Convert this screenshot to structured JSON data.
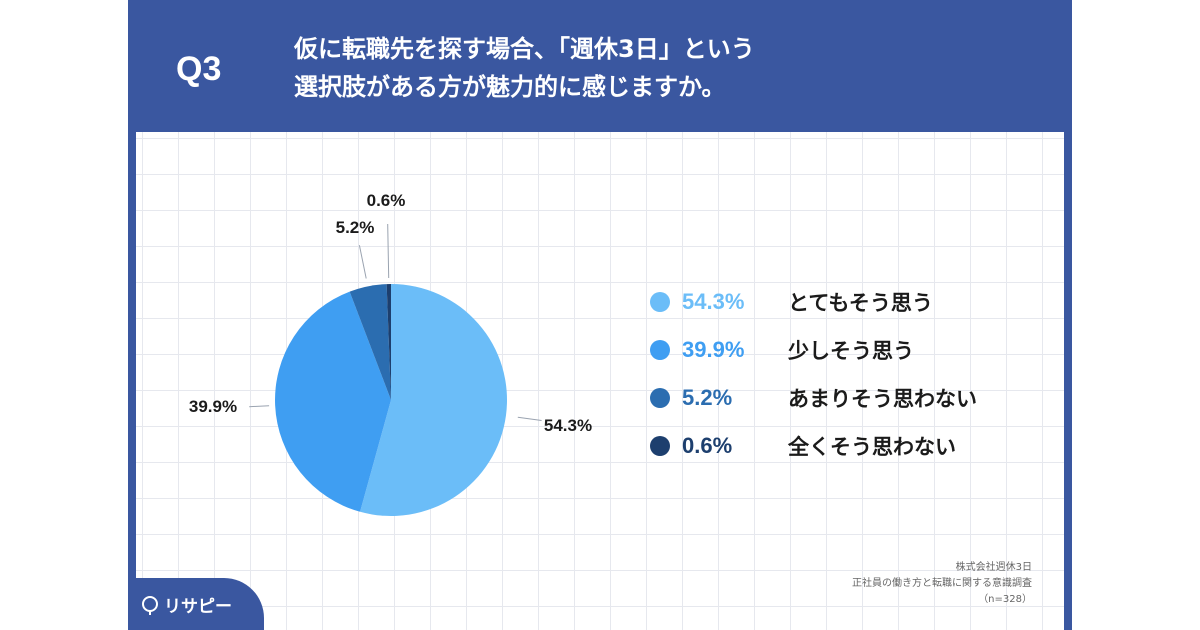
{
  "header": {
    "q_label": "Q3",
    "title_line1": "仮に転職先を探す場合、「週休3日」という",
    "title_line2": "選択肢がある方が魅力的に感じますか。"
  },
  "colors": {
    "frame": "#3a57a0",
    "series": [
      "#6bbdf8",
      "#3f9ef2",
      "#2b6db0",
      "#1d3f6e"
    ]
  },
  "chart_data": {
    "type": "pie",
    "categories": [
      "とてもそう思う",
      "少しそう思う",
      "あまりそう思わない",
      "全くそう思わない"
    ],
    "values": [
      54.3,
      39.9,
      5.2,
      0.6
    ],
    "value_labels": [
      "54.3%",
      "39.9%",
      "5.2%",
      "0.6%"
    ],
    "legend_position": "right",
    "grid": true
  },
  "legend": [
    {
      "pct": "54.3%",
      "label": "とてもそう思う"
    },
    {
      "pct": "39.9%",
      "label": "少しそう思う"
    },
    {
      "pct": "5.2%",
      "label": "あまりそう思わない"
    },
    {
      "pct": "0.6%",
      "label": "全くそう思わない"
    }
  ],
  "source": {
    "line1": "株式会社週休3日",
    "line2": "正社員の働き方と転職に関する意識調査",
    "line3": "（n=328）"
  },
  "logo": {
    "text": "リサピー"
  }
}
